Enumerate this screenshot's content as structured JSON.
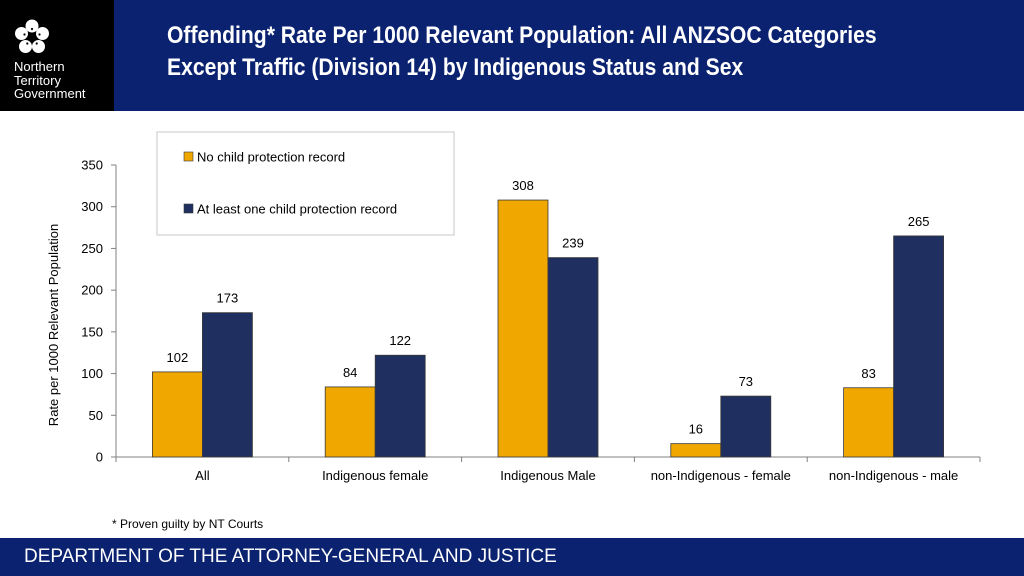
{
  "header": {
    "logo_lines": [
      "Northern",
      "Territory",
      "Government"
    ],
    "logo_icon": "flower-icon",
    "title_line1": "Offending* Rate Per 1000 Relevant Population: All ANZSOC Categories",
    "title_line2": "Except Traffic (Division 14) by Indigenous Status and Sex"
  },
  "chart_data": {
    "type": "bar",
    "categories": [
      "All",
      "Indigenous female",
      "Indigenous Male",
      "non-Indigenous - female",
      "non-Indigenous - male"
    ],
    "series": [
      {
        "name": "No child protection record",
        "values": [
          102,
          84,
          308,
          16,
          83
        ],
        "color": "#f0a800"
      },
      {
        "name": "At least one child protection record",
        "values": [
          173,
          122,
          239,
          73,
          265
        ],
        "color": "#1f2f5f"
      }
    ],
    "ylabel": "Rate per 1000 Relevant Population",
    "xlabel": "",
    "ylim": [
      0,
      350
    ],
    "yticks": [
      0,
      50,
      100,
      150,
      200,
      250,
      300,
      350
    ],
    "legend_position": "top-left",
    "grid": false,
    "data_labels": true
  },
  "footnote": "* Proven guilty by NT Courts",
  "footer": {
    "text": "DEPARTMENT OF THE ATTORNEY-GENERAL AND JUSTICE"
  },
  "colors": {
    "header_bg": "#0b2270",
    "logo_bg": "#000000"
  }
}
